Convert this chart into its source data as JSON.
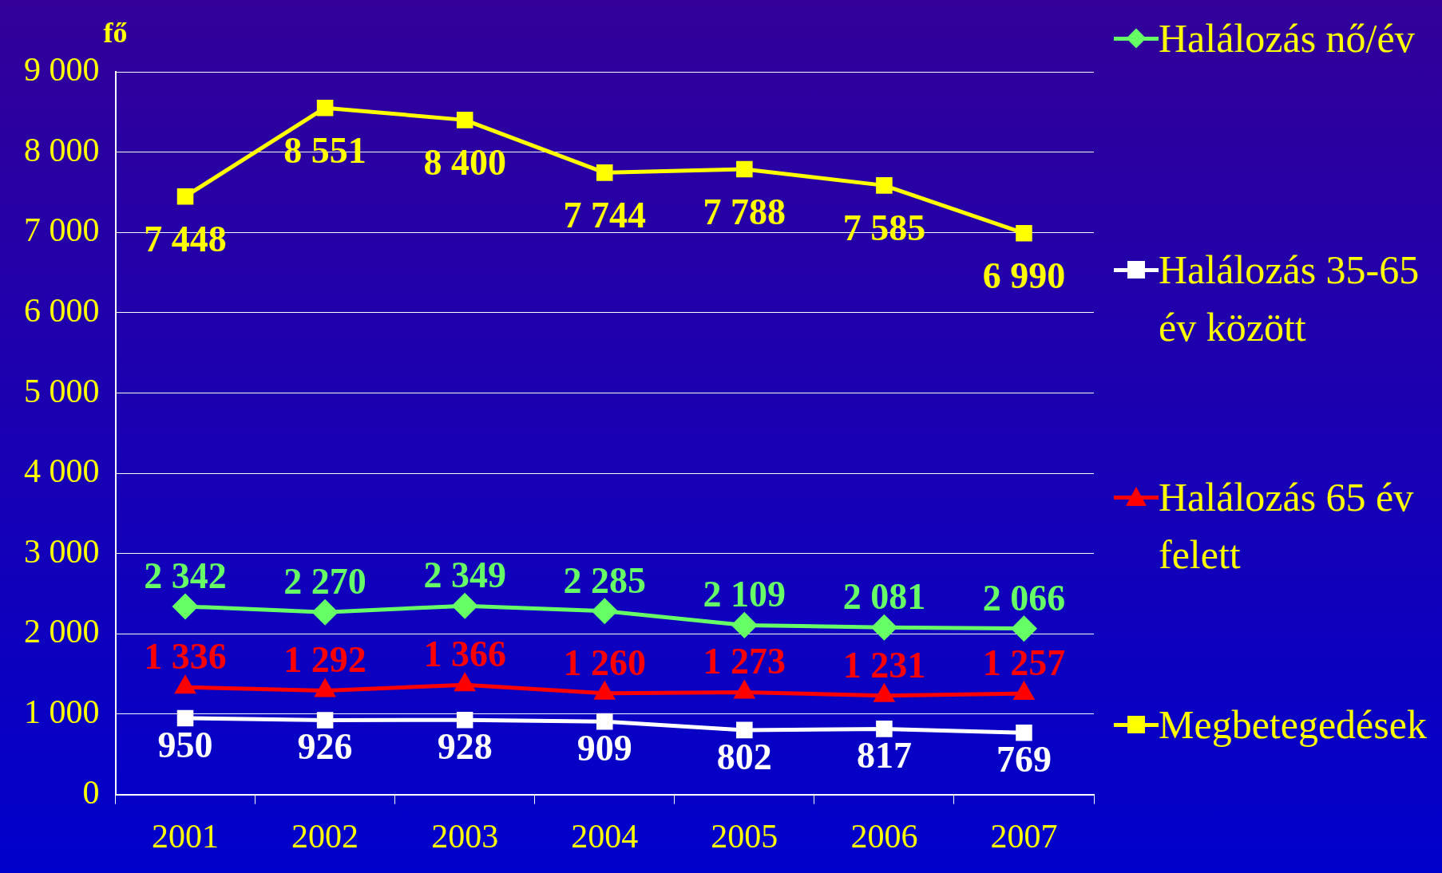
{
  "chart_data": {
    "type": "line",
    "ylabel": "fő",
    "categories": [
      "2001",
      "2002",
      "2003",
      "2004",
      "2005",
      "2006",
      "2007"
    ],
    "ylim": [
      0,
      9000
    ],
    "yticks": [
      {
        "value": 0,
        "label": "0"
      },
      {
        "value": 1000,
        "label": "1 000"
      },
      {
        "value": 2000,
        "label": "2 000"
      },
      {
        "value": 3000,
        "label": "3 000"
      },
      {
        "value": 4000,
        "label": "4 000"
      },
      {
        "value": 5000,
        "label": "5 000"
      },
      {
        "value": 6000,
        "label": "6 000"
      },
      {
        "value": 7000,
        "label": "7 000"
      },
      {
        "value": 8000,
        "label": "8 000"
      },
      {
        "value": 9000,
        "label": "9 000"
      }
    ],
    "grid": "y",
    "legend": "right",
    "line_style": "solid",
    "series": [
      {
        "name": "Halálozás nő/év",
        "color": "#66ff66",
        "marker": "diamond",
        "values": [
          2342,
          2270,
          2349,
          2285,
          2109,
          2081,
          2066
        ],
        "value_labels": [
          "2 342",
          "2 270",
          "2 349",
          "2 285",
          "2 109",
          "2 081",
          "2 066"
        ]
      },
      {
        "name": "Halálozás 35-65 év között",
        "color": "#ffffff",
        "marker": "square",
        "values": [
          950,
          926,
          928,
          909,
          802,
          817,
          769
        ],
        "value_labels": [
          "950",
          "926",
          "928",
          "909",
          "802",
          "817",
          "769"
        ]
      },
      {
        "name": "Halálozás 65 év felett",
        "color": "#ff0000",
        "marker": "triangle",
        "values": [
          1336,
          1292,
          1366,
          1260,
          1273,
          1231,
          1257
        ],
        "value_labels": [
          "1 336",
          "1 292",
          "1 366",
          "1 260",
          "1 273",
          "1 231",
          "1 257"
        ]
      },
      {
        "name": "Megbetegedések",
        "color": "#ffff00",
        "marker": "square",
        "values": [
          7448,
          8551,
          8400,
          7744,
          7788,
          7585,
          6990
        ],
        "value_labels": [
          "7 448",
          "8 551",
          "8 400",
          "7 744",
          "7 788",
          "7 585",
          "6 990"
        ]
      }
    ]
  }
}
